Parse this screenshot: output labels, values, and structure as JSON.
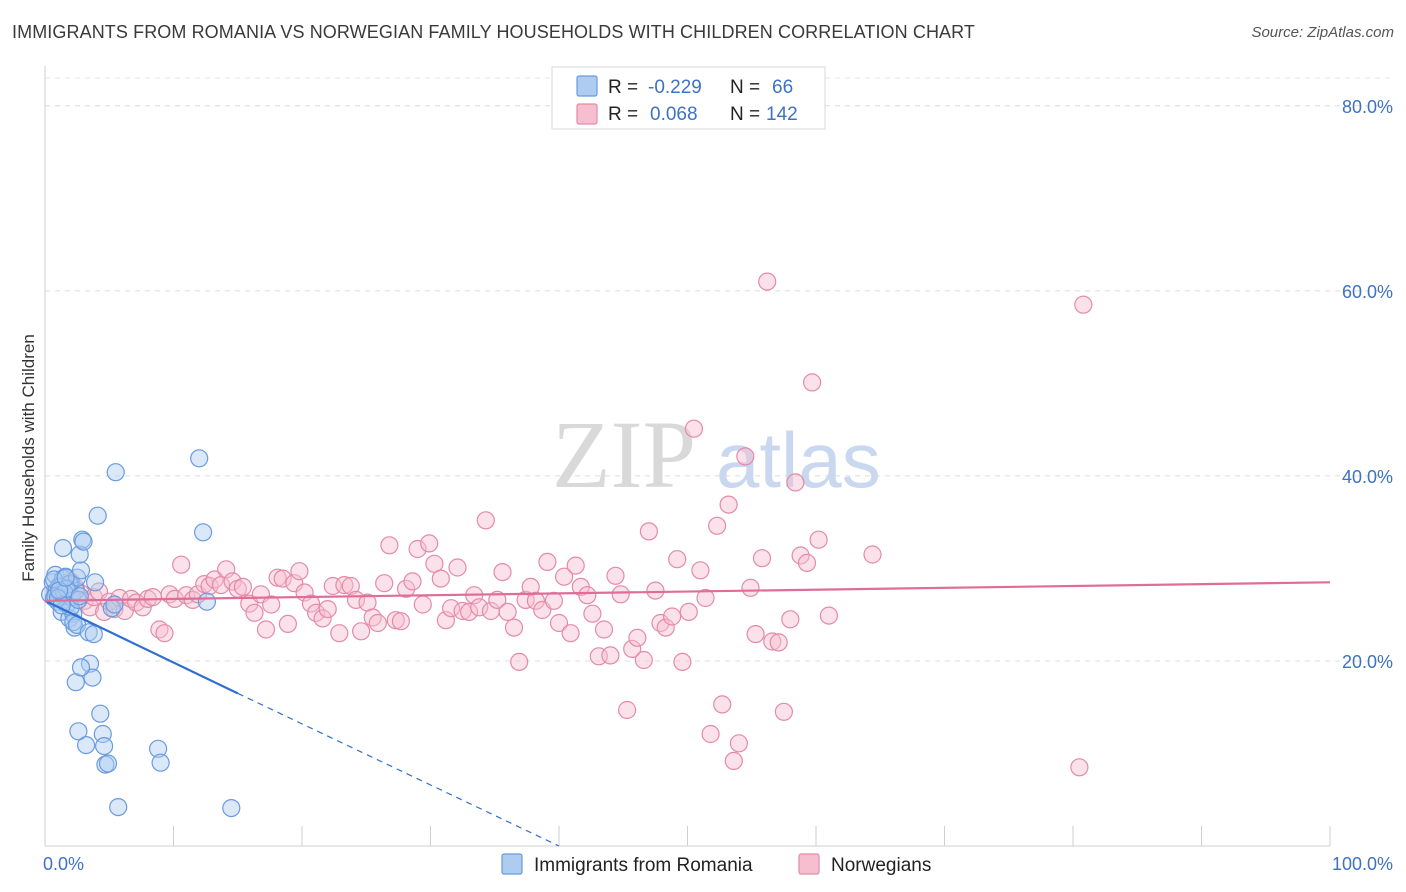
{
  "title": "IMMIGRANTS FROM ROMANIA VS NORWEGIAN FAMILY HOUSEHOLDS WITH CHILDREN CORRELATION CHART",
  "source": "Source: ZipAtlas.com",
  "watermark": {
    "zip": "ZIP",
    "atlas": "atlas"
  },
  "legend": {
    "r_label": "R =",
    "n_label": "N =",
    "rows": [
      {
        "r": "-0.229",
        "n": "66",
        "color": "#aecbf0",
        "stroke": "#6a9be0"
      },
      {
        "r": "0.068",
        "n": "142",
        "color": "#f6bfd0",
        "stroke": "#e48aa8"
      }
    ]
  },
  "chart_data": {
    "type": "scatter",
    "title": "IMMIGRANTS FROM ROMANIA VS NORWEGIAN FAMILY HOUSEHOLDS WITH CHILDREN CORRELATION CHART",
    "xlabel": "",
    "ylabel": "Family Households with Children",
    "xlim": [
      0,
      100
    ],
    "ylim": [
      0,
      83
    ],
    "x_tick_labels": [
      "0.0%",
      "100.0%"
    ],
    "y_ticks": [
      20,
      40,
      60,
      80
    ],
    "y_tick_labels": [
      "20.0%",
      "40.0%",
      "60.0%",
      "80.0%"
    ],
    "grid": true,
    "series": [
      {
        "name": "Immigrants from Romania",
        "color": "#aecbf0",
        "stroke": "#6a9be0",
        "trend": {
          "x0": 0,
          "y0": 26.5,
          "x1": 15,
          "y1": 16.5,
          "dash_to_x": 40,
          "dash_to_y": 0,
          "color": "#2f6fd0"
        },
        "points": [
          [
            0.4,
            27.2
          ],
          [
            0.6,
            28.5
          ],
          [
            0.7,
            26.8
          ],
          [
            0.8,
            29.3
          ],
          [
            0.9,
            27.6
          ],
          [
            1.0,
            26.4
          ],
          [
            1.1,
            28.1
          ],
          [
            1.2,
            27.3
          ],
          [
            1.3,
            25.3
          ],
          [
            1.4,
            28.9
          ],
          [
            1.5,
            27.0
          ],
          [
            1.6,
            29.1
          ],
          [
            1.7,
            26.1
          ],
          [
            1.8,
            27.9
          ],
          [
            1.9,
            24.6
          ],
          [
            2.0,
            28.4
          ],
          [
            2.1,
            26.9
          ],
          [
            2.2,
            25.1
          ],
          [
            2.3,
            23.6
          ],
          [
            2.4,
            27.6
          ],
          [
            1.2,
            28.0
          ],
          [
            0.8,
            27.0
          ],
          [
            1.9,
            28.3
          ],
          [
            1.5,
            27.4
          ],
          [
            2.5,
            29.0
          ],
          [
            2.0,
            25.8
          ],
          [
            1.7,
            27.8
          ],
          [
            1.0,
            26.8
          ],
          [
            1.3,
            26.0
          ],
          [
            2.6,
            26.6
          ],
          [
            0.7,
            28.8
          ],
          [
            1.1,
            27.6
          ],
          [
            1.6,
            29.0
          ],
          [
            2.2,
            24.2
          ],
          [
            2.5,
            23.9
          ],
          [
            1.4,
            32.2
          ],
          [
            2.7,
            27.0
          ],
          [
            2.8,
            29.8
          ],
          [
            2.7,
            31.5
          ],
          [
            2.9,
            33.1
          ],
          [
            3.0,
            32.9
          ],
          [
            3.4,
            23.1
          ],
          [
            3.5,
            19.7
          ],
          [
            3.7,
            18.2
          ],
          [
            3.8,
            22.9
          ],
          [
            3.9,
            28.5
          ],
          [
            4.1,
            35.7
          ],
          [
            4.3,
            14.3
          ],
          [
            4.5,
            12.1
          ],
          [
            4.6,
            10.8
          ],
          [
            4.7,
            8.8
          ],
          [
            4.9,
            8.9
          ],
          [
            5.2,
            25.7
          ],
          [
            5.4,
            26.1
          ],
          [
            5.5,
            40.4
          ],
          [
            5.7,
            4.2
          ],
          [
            8.8,
            10.5
          ],
          [
            9.0,
            9.0
          ],
          [
            12.0,
            41.9
          ],
          [
            12.3,
            33.9
          ],
          [
            12.6,
            26.4
          ],
          [
            14.5,
            4.1
          ],
          [
            2.4,
            17.7
          ],
          [
            2.8,
            19.3
          ],
          [
            3.2,
            10.9
          ],
          [
            2.6,
            12.4
          ]
        ]
      },
      {
        "name": "Norwegians",
        "color": "#f6bfd0",
        "stroke": "#e48aa8",
        "trend": {
          "x0": 0,
          "y0": 26.5,
          "x1": 100,
          "y1": 28.5,
          "color": "#e06d97"
        },
        "points": [
          [
            0.8,
            27.5
          ],
          [
            1.2,
            28.2
          ],
          [
            1.6,
            27.0
          ],
          [
            2.0,
            28.6
          ],
          [
            2.4,
            27.9
          ],
          [
            2.8,
            27.3
          ],
          [
            3.1,
            26.5
          ],
          [
            3.5,
            25.8
          ],
          [
            3.8,
            26.9
          ],
          [
            4.2,
            27.5
          ],
          [
            4.6,
            25.3
          ],
          [
            5.0,
            26.4
          ],
          [
            5.4,
            25.6
          ],
          [
            5.8,
            26.8
          ],
          [
            6.2,
            25.4
          ],
          [
            6.7,
            26.7
          ],
          [
            7.1,
            26.3
          ],
          [
            7.6,
            25.8
          ],
          [
            8.0,
            26.7
          ],
          [
            8.4,
            26.9
          ],
          [
            8.9,
            23.4
          ],
          [
            9.3,
            23.0
          ],
          [
            9.7,
            27.2
          ],
          [
            10.1,
            26.7
          ],
          [
            10.6,
            30.4
          ],
          [
            11.0,
            27.1
          ],
          [
            11.5,
            26.6
          ],
          [
            11.9,
            27.2
          ],
          [
            12.4,
            28.3
          ],
          [
            12.8,
            28.1
          ],
          [
            13.2,
            28.8
          ],
          [
            13.7,
            28.2
          ],
          [
            14.1,
            29.9
          ],
          [
            14.6,
            28.6
          ],
          [
            15.0,
            27.8
          ],
          [
            15.4,
            28.0
          ],
          [
            15.9,
            26.2
          ],
          [
            16.3,
            25.2
          ],
          [
            16.8,
            27.2
          ],
          [
            17.2,
            23.4
          ],
          [
            17.6,
            26.1
          ],
          [
            18.1,
            29.0
          ],
          [
            18.5,
            28.9
          ],
          [
            18.9,
            24.0
          ],
          [
            19.4,
            28.4
          ],
          [
            19.8,
            29.7
          ],
          [
            20.2,
            27.4
          ],
          [
            20.7,
            26.2
          ],
          [
            21.1,
            25.2
          ],
          [
            21.6,
            24.6
          ],
          [
            22.0,
            25.6
          ],
          [
            22.4,
            28.1
          ],
          [
            22.9,
            23.0
          ],
          [
            23.3,
            28.2
          ],
          [
            23.8,
            28.1
          ],
          [
            24.2,
            26.6
          ],
          [
            24.6,
            23.2
          ],
          [
            25.1,
            26.3
          ],
          [
            25.5,
            24.7
          ],
          [
            25.9,
            24.1
          ],
          [
            26.4,
            28.4
          ],
          [
            26.8,
            32.5
          ],
          [
            27.3,
            24.4
          ],
          [
            27.7,
            24.3
          ],
          [
            28.1,
            27.8
          ],
          [
            28.6,
            28.6
          ],
          [
            29.0,
            32.1
          ],
          [
            29.4,
            26.1
          ],
          [
            29.9,
            32.7
          ],
          [
            30.3,
            30.5
          ],
          [
            30.8,
            28.9
          ],
          [
            31.2,
            24.4
          ],
          [
            31.6,
            25.7
          ],
          [
            32.1,
            30.1
          ],
          [
            32.5,
            25.4
          ],
          [
            33.0,
            25.3
          ],
          [
            33.4,
            27.1
          ],
          [
            33.8,
            25.8
          ],
          [
            34.3,
            35.2
          ],
          [
            34.7,
            25.4
          ],
          [
            35.2,
            26.6
          ],
          [
            35.6,
            29.6
          ],
          [
            36.0,
            25.3
          ],
          [
            36.5,
            23.6
          ],
          [
            36.9,
            19.9
          ],
          [
            37.4,
            26.6
          ],
          [
            37.8,
            28.0
          ],
          [
            38.2,
            26.5
          ],
          [
            38.7,
            25.5
          ],
          [
            39.1,
            30.7
          ],
          [
            39.6,
            26.5
          ],
          [
            40.0,
            24.1
          ],
          [
            40.4,
            29.1
          ],
          [
            40.9,
            23.0
          ],
          [
            41.3,
            30.3
          ],
          [
            41.7,
            28.0
          ],
          [
            42.2,
            27.1
          ],
          [
            42.6,
            25.1
          ],
          [
            43.1,
            20.5
          ],
          [
            43.5,
            23.4
          ],
          [
            44.0,
            20.6
          ],
          [
            44.4,
            29.2
          ],
          [
            44.8,
            27.2
          ],
          [
            45.3,
            14.7
          ],
          [
            45.7,
            21.3
          ],
          [
            46.1,
            22.5
          ],
          [
            46.6,
            20.1
          ],
          [
            47.0,
            34.0
          ],
          [
            47.5,
            27.6
          ],
          [
            47.9,
            24.1
          ],
          [
            48.3,
            23.6
          ],
          [
            48.8,
            24.8
          ],
          [
            49.2,
            31.0
          ],
          [
            49.6,
            19.9
          ],
          [
            50.1,
            25.3
          ],
          [
            50.5,
            45.1
          ],
          [
            51.0,
            29.8
          ],
          [
            51.4,
            26.8
          ],
          [
            51.8,
            12.1
          ],
          [
            52.3,
            34.6
          ],
          [
            52.7,
            15.3
          ],
          [
            53.2,
            36.9
          ],
          [
            53.6,
            9.2
          ],
          [
            54.0,
            11.1
          ],
          [
            54.5,
            42.1
          ],
          [
            54.9,
            27.9
          ],
          [
            55.3,
            22.9
          ],
          [
            55.8,
            31.1
          ],
          [
            56.2,
            61.0
          ],
          [
            56.6,
            22.1
          ],
          [
            57.1,
            22.0
          ],
          [
            57.5,
            14.5
          ],
          [
            58.0,
            24.5
          ],
          [
            58.4,
            39.3
          ],
          [
            58.8,
            31.4
          ],
          [
            59.3,
            30.6
          ],
          [
            59.7,
            50.1
          ],
          [
            60.2,
            33.1
          ],
          [
            61.0,
            24.9
          ],
          [
            64.4,
            31.5
          ],
          [
            80.5,
            8.5
          ],
          [
            80.8,
            58.5
          ]
        ]
      }
    ]
  },
  "bottom_legend": [
    {
      "label": "Immigrants from Romania",
      "color": "#aecbf0",
      "stroke": "#6a9be0"
    },
    {
      "label": "Norwegians",
      "color": "#f6bfd0",
      "stroke": "#e48aa8"
    }
  ]
}
